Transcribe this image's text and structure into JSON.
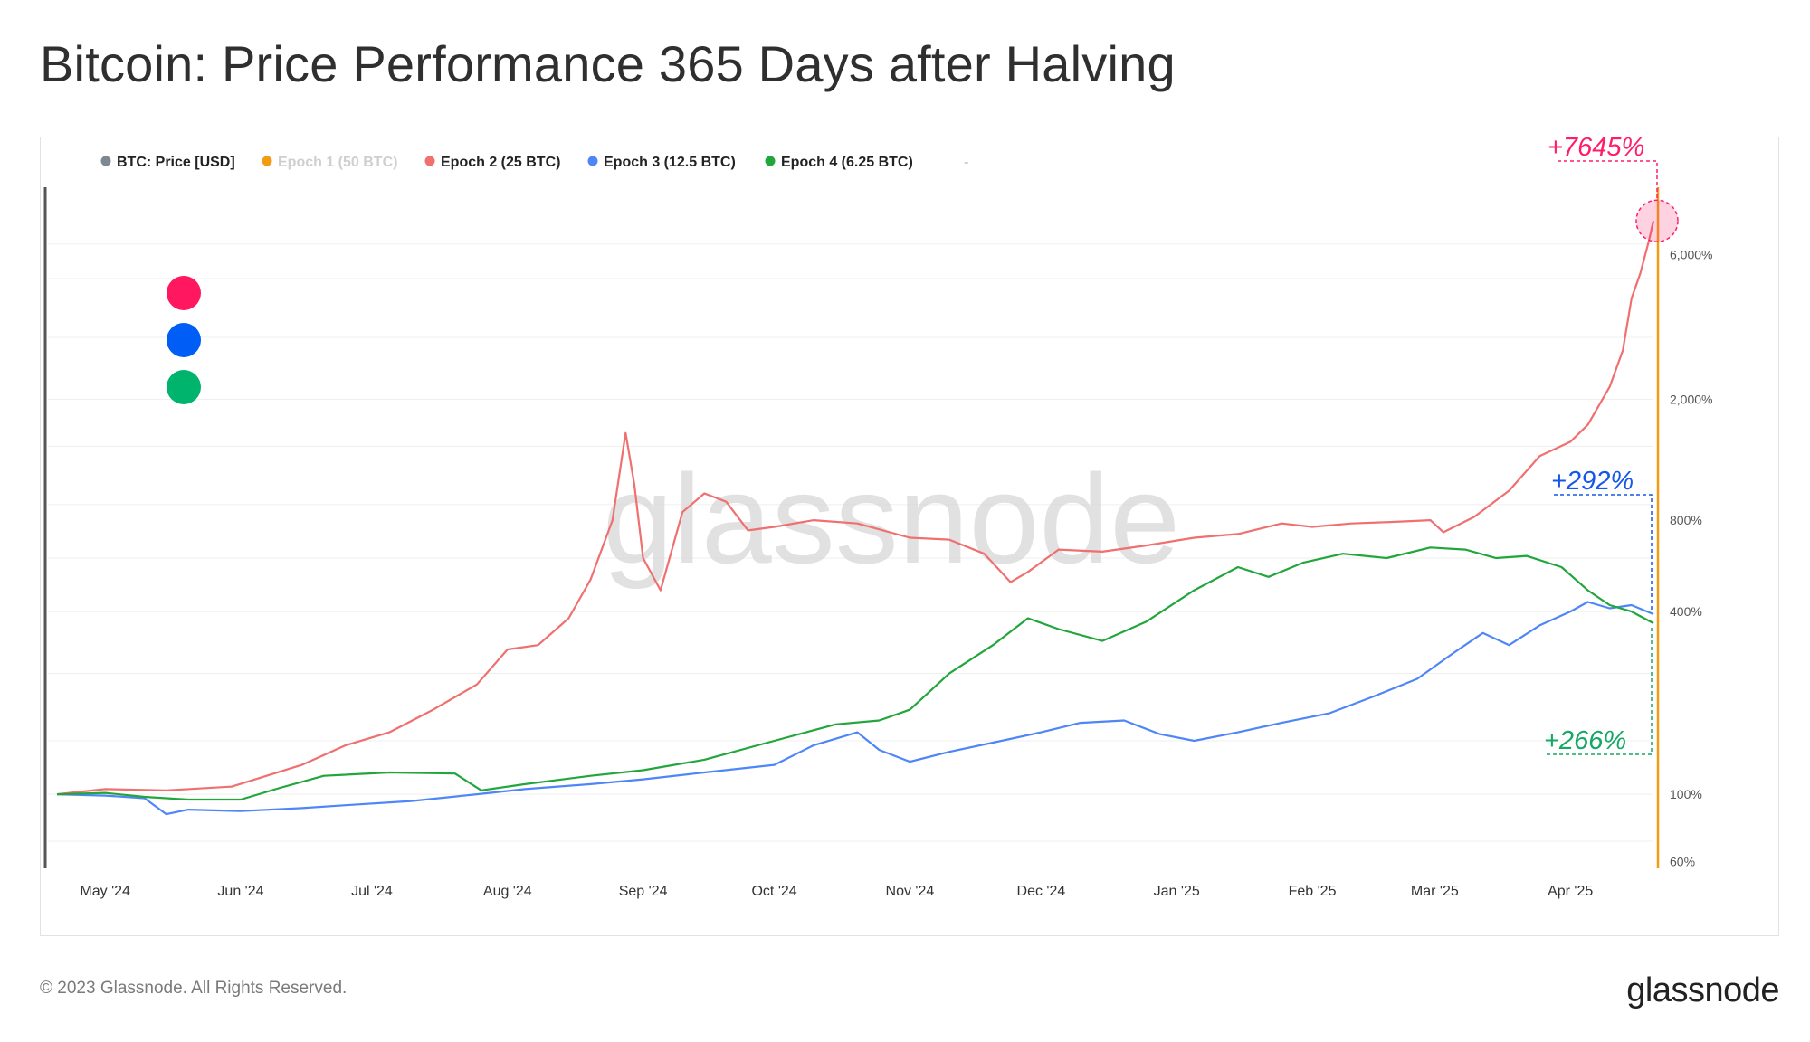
{
  "title": "Bitcoin: Price Performance 365 Days after Halving",
  "footer": {
    "copyright": "© 2023 Glassnode. All Rights Reserved.",
    "logo": "glassnode"
  },
  "watermark": "glassnode",
  "legend": [
    {
      "label": "BTC: Price [USD]",
      "color": "#7d8891",
      "muted": false
    },
    {
      "label": "Epoch 1 (50 BTC)",
      "color": "#f39c12",
      "muted": true
    },
    {
      "label": "Epoch 2 (25 BTC)",
      "color": "#f06f6f",
      "muted": false
    },
    {
      "label": "Epoch 3 (12.5 BTC)",
      "color": "#4f86f7",
      "muted": false
    },
    {
      "label": "Epoch 4 (6.25 BTC)",
      "color": "#22a63b",
      "muted": false
    },
    {
      "label": "-",
      "color": "#bbbbbb",
      "muted": true
    }
  ],
  "marker_dots": [
    {
      "name": "epoch-2",
      "color": "#ff1760"
    },
    {
      "name": "epoch-3",
      "color": "#005df5"
    },
    {
      "name": "epoch-4",
      "color": "#00b46e"
    }
  ],
  "annotations": [
    {
      "text": "+7645%",
      "color": "#ff1d6b",
      "series": "Epoch 2 (25 BTC)"
    },
    {
      "text": "+292%",
      "color": "#1557e6",
      "series": "Epoch 3 (12.5 BTC)"
    },
    {
      "text": "+266%",
      "color": "#14a865",
      "series": "Epoch 4 (6.25 BTC)"
    }
  ],
  "colors": {
    "axis_line": "#f39c12",
    "left_axis": "#555555",
    "grid": "#efefef"
  },
  "chart_data": {
    "type": "line",
    "title": "Bitcoin: Price Performance 365 Days after Halving",
    "xlabel": "",
    "ylabel": "",
    "y_scale": "log",
    "y_ticks": [
      60,
      100,
      400,
      800,
      2000,
      6000
    ],
    "y_tick_labels": [
      "60%",
      "100%",
      "400%",
      "800%",
      "2,000%",
      "6,000%"
    ],
    "x_ticks": [
      "May '24",
      "Jun '24",
      "Jul '24",
      "Aug '24",
      "Sep '24",
      "Oct '24",
      "Nov '24",
      "Dec '24",
      "Jan '25",
      "Feb '25",
      "Mar '25",
      "Apr '25"
    ],
    "x_range": [
      "Apr 20 '24",
      "Apr 20 '25"
    ],
    "ylim": [
      57,
      10000
    ],
    "grid": true,
    "legend_position": "top-left",
    "series": [
      {
        "name": "Epoch 2 (25 BTC)",
        "color": "#f06f6f",
        "points": [
          [
            "2024-04-20",
            100
          ],
          [
            "2024-05-01",
            104
          ],
          [
            "2024-05-15",
            103
          ],
          [
            "2024-05-30",
            106
          ],
          [
            "2024-06-15",
            125
          ],
          [
            "2024-06-25",
            145
          ],
          [
            "2024-07-05",
            160
          ],
          [
            "2024-07-15",
            190
          ],
          [
            "2024-07-25",
            230
          ],
          [
            "2024-08-01",
            300
          ],
          [
            "2024-08-08",
            310
          ],
          [
            "2024-08-15",
            380
          ],
          [
            "2024-08-20",
            510
          ],
          [
            "2024-08-25",
            800
          ],
          [
            "2024-08-28",
            1550
          ],
          [
            "2024-08-30",
            1050
          ],
          [
            "2024-09-01",
            600
          ],
          [
            "2024-09-05",
            470
          ],
          [
            "2024-09-10",
            850
          ],
          [
            "2024-09-15",
            980
          ],
          [
            "2024-09-20",
            920
          ],
          [
            "2024-09-25",
            740
          ],
          [
            "2024-10-01",
            760
          ],
          [
            "2024-10-10",
            800
          ],
          [
            "2024-10-20",
            780
          ],
          [
            "2024-11-01",
            700
          ],
          [
            "2024-11-10",
            690
          ],
          [
            "2024-11-18",
            620
          ],
          [
            "2024-11-24",
            500
          ],
          [
            "2024-11-28",
            540
          ],
          [
            "2024-12-05",
            640
          ],
          [
            "2024-12-15",
            630
          ],
          [
            "2024-12-25",
            660
          ],
          [
            "2025-01-05",
            700
          ],
          [
            "2025-01-15",
            720
          ],
          [
            "2025-01-25",
            780
          ],
          [
            "2025-02-01",
            760
          ],
          [
            "2025-02-10",
            780
          ],
          [
            "2025-02-20",
            790
          ],
          [
            "2025-02-28",
            800
          ],
          [
            "2025-03-03",
            730
          ],
          [
            "2025-03-10",
            820
          ],
          [
            "2025-03-18",
            1000
          ],
          [
            "2025-03-25",
            1300
          ],
          [
            "2025-04-01",
            1450
          ],
          [
            "2025-04-05",
            1650
          ],
          [
            "2025-04-10",
            2200
          ],
          [
            "2025-04-13",
            2900
          ],
          [
            "2025-04-15",
            4300
          ],
          [
            "2025-04-17",
            5200
          ],
          [
            "2025-04-19",
            6700
          ],
          [
            "2025-04-20",
            7745
          ]
        ]
      },
      {
        "name": "Epoch 3 (12.5 BTC)",
        "color": "#4f86f7",
        "points": [
          [
            "2024-04-20",
            100
          ],
          [
            "2024-05-01",
            99
          ],
          [
            "2024-05-10",
            97
          ],
          [
            "2024-05-15",
            86
          ],
          [
            "2024-05-20",
            89
          ],
          [
            "2024-06-01",
            88
          ],
          [
            "2024-06-15",
            90
          ],
          [
            "2024-06-25",
            92
          ],
          [
            "2024-07-10",
            95
          ],
          [
            "2024-07-25",
            100
          ],
          [
            "2024-08-05",
            104
          ],
          [
            "2024-08-20",
            108
          ],
          [
            "2024-09-01",
            112
          ],
          [
            "2024-09-15",
            118
          ],
          [
            "2024-10-01",
            125
          ],
          [
            "2024-10-10",
            145
          ],
          [
            "2024-10-20",
            160
          ],
          [
            "2024-10-25",
            140
          ],
          [
            "2024-11-01",
            128
          ],
          [
            "2024-11-10",
            138
          ],
          [
            "2024-11-20",
            148
          ],
          [
            "2024-12-01",
            160
          ],
          [
            "2024-12-10",
            172
          ],
          [
            "2024-12-20",
            175
          ],
          [
            "2024-12-28",
            158
          ],
          [
            "2025-01-05",
            150
          ],
          [
            "2025-01-15",
            160
          ],
          [
            "2025-01-25",
            172
          ],
          [
            "2025-02-05",
            185
          ],
          [
            "2025-02-15",
            210
          ],
          [
            "2025-02-25",
            240
          ],
          [
            "2025-03-05",
            290
          ],
          [
            "2025-03-12",
            340
          ],
          [
            "2025-03-18",
            310
          ],
          [
            "2025-03-25",
            360
          ],
          [
            "2025-04-01",
            400
          ],
          [
            "2025-04-05",
            430
          ],
          [
            "2025-04-10",
            410
          ],
          [
            "2025-04-15",
            420
          ],
          [
            "2025-04-20",
            392
          ]
        ]
      },
      {
        "name": "Epoch 4 (6.25 BTC)",
        "color": "#22a63b",
        "points": [
          [
            "2024-04-20",
            100
          ],
          [
            "2024-05-01",
            101
          ],
          [
            "2024-05-10",
            98
          ],
          [
            "2024-05-20",
            96
          ],
          [
            "2024-06-01",
            96
          ],
          [
            "2024-06-10",
            105
          ],
          [
            "2024-06-20",
            115
          ],
          [
            "2024-07-05",
            118
          ],
          [
            "2024-07-20",
            117
          ],
          [
            "2024-07-26",
            103
          ],
          [
            "2024-08-05",
            108
          ],
          [
            "2024-08-20",
            115
          ],
          [
            "2024-09-01",
            120
          ],
          [
            "2024-09-15",
            130
          ],
          [
            "2024-10-01",
            150
          ],
          [
            "2024-10-15",
            170
          ],
          [
            "2024-10-25",
            175
          ],
          [
            "2024-11-01",
            190
          ],
          [
            "2024-11-10",
            250
          ],
          [
            "2024-11-20",
            310
          ],
          [
            "2024-11-28",
            380
          ],
          [
            "2024-12-05",
            350
          ],
          [
            "2024-12-15",
            320
          ],
          [
            "2024-12-25",
            370
          ],
          [
            "2025-01-05",
            470
          ],
          [
            "2025-01-15",
            560
          ],
          [
            "2025-01-22",
            520
          ],
          [
            "2025-01-30",
            580
          ],
          [
            "2025-02-08",
            620
          ],
          [
            "2025-02-18",
            600
          ],
          [
            "2025-02-28",
            650
          ],
          [
            "2025-03-08",
            640
          ],
          [
            "2025-03-15",
            600
          ],
          [
            "2025-03-22",
            610
          ],
          [
            "2025-03-30",
            560
          ],
          [
            "2025-04-05",
            470
          ],
          [
            "2025-04-10",
            420
          ],
          [
            "2025-04-15",
            400
          ],
          [
            "2025-04-20",
            366
          ]
        ]
      }
    ],
    "final_values": {
      "Epoch 2 (25 BTC)": "+7645%",
      "Epoch 3 (12.5 BTC)": "+292%",
      "Epoch 4 (6.25 BTC)": "+266%"
    }
  }
}
